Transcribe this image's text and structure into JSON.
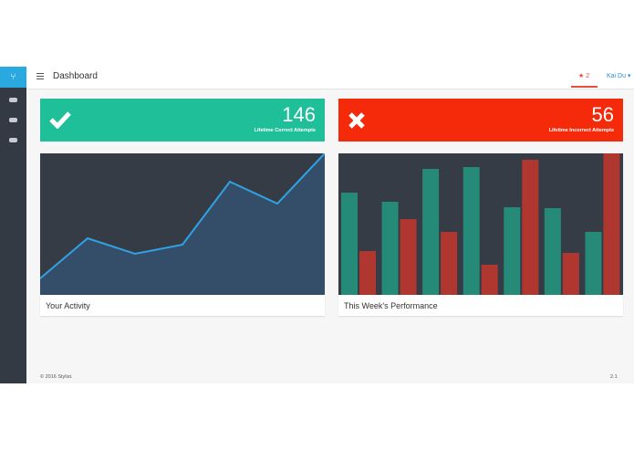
{
  "header": {
    "title": "Dashboard",
    "notifications": "2",
    "user": "Kai Du"
  },
  "cards": [
    {
      "value": "146",
      "label": "Lifetime Correct Attempts"
    },
    {
      "value": "56",
      "label": "Lifetime Incorrect Attempts"
    }
  ],
  "chart_data": [
    {
      "type": "line",
      "title": "Your Activity",
      "values": [
        18,
        62,
        45,
        55,
        124,
        100,
        155
      ],
      "color": "#2fa3e6",
      "fill": "#344e69"
    },
    {
      "type": "bar",
      "title": "This Week's Performance",
      "series": [
        {
          "color": "#268a78",
          "values": [
            112,
            102,
            138,
            140,
            96,
            95,
            69
          ]
        },
        {
          "color": "#b0372f",
          "values": [
            48,
            83,
            69,
            33,
            148,
            46,
            155
          ]
        }
      ]
    }
  ],
  "footer": {
    "copyright": "© 2016 Stylist.",
    "version": "2.1"
  }
}
